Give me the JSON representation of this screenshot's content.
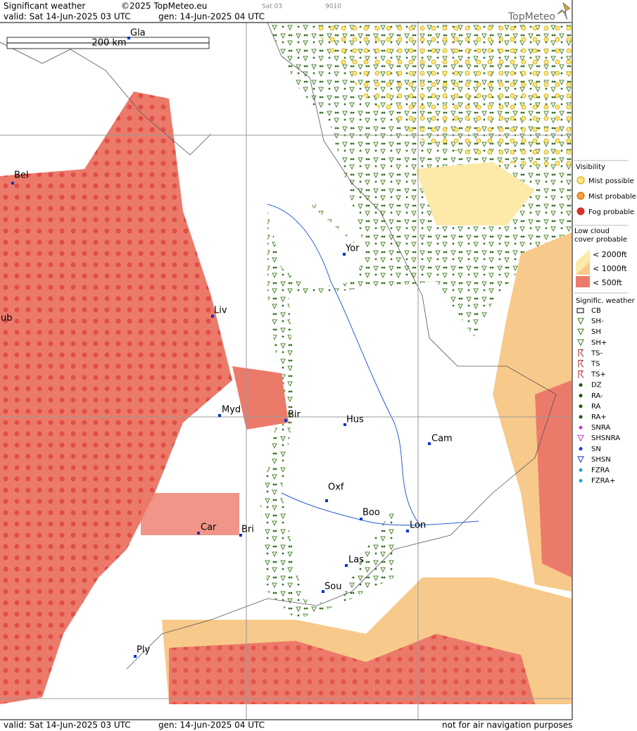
{
  "header": {
    "title": "Significant weather",
    "copyright": "©2025 TopMeteo.eu",
    "run": "Sat 03",
    "code": "9010",
    "valid": "valid:  Sat  14-Jun-2025  03 UTC",
    "gen": "gen: 14-Jun-2025 04 UTC",
    "logo": "TopMeteo"
  },
  "map": {
    "scale": "200 km",
    "cities": [
      "Gla",
      "Bel",
      "Yor",
      "ub",
      "Liv",
      "Myd",
      "Bir",
      "Hus",
      "Cam",
      "Oxf",
      "Boo",
      "Lon",
      "Car",
      "Bri",
      "Las",
      "Sou",
      "Ply"
    ]
  },
  "legend": {
    "visibility": {
      "title": "Visibility",
      "items": [
        "Mist possible",
        "Mist probable",
        "Fog probable"
      ]
    },
    "cloud": {
      "title": "Low cloud cover probable",
      "items": [
        "< 2000ft",
        "< 1000ft",
        "<  500ft"
      ]
    },
    "weather": {
      "title": "Signific. weather",
      "items": [
        "CB",
        "SH-",
        "SH",
        "SH+",
        "TS-",
        "TS",
        "TS+",
        "DZ",
        "RA-",
        "RA",
        "RA+",
        "SNRA",
        "SHSNRA",
        "SN",
        "SHSN",
        "FZRA",
        "FZRA+"
      ]
    }
  },
  "footer": {
    "valid": "valid:  Sat  14-Jun-2025  03 UTC",
    "gen": "gen: 14-Jun-2025 04 UTC",
    "disclaimer": "not for air navigation purposes"
  }
}
